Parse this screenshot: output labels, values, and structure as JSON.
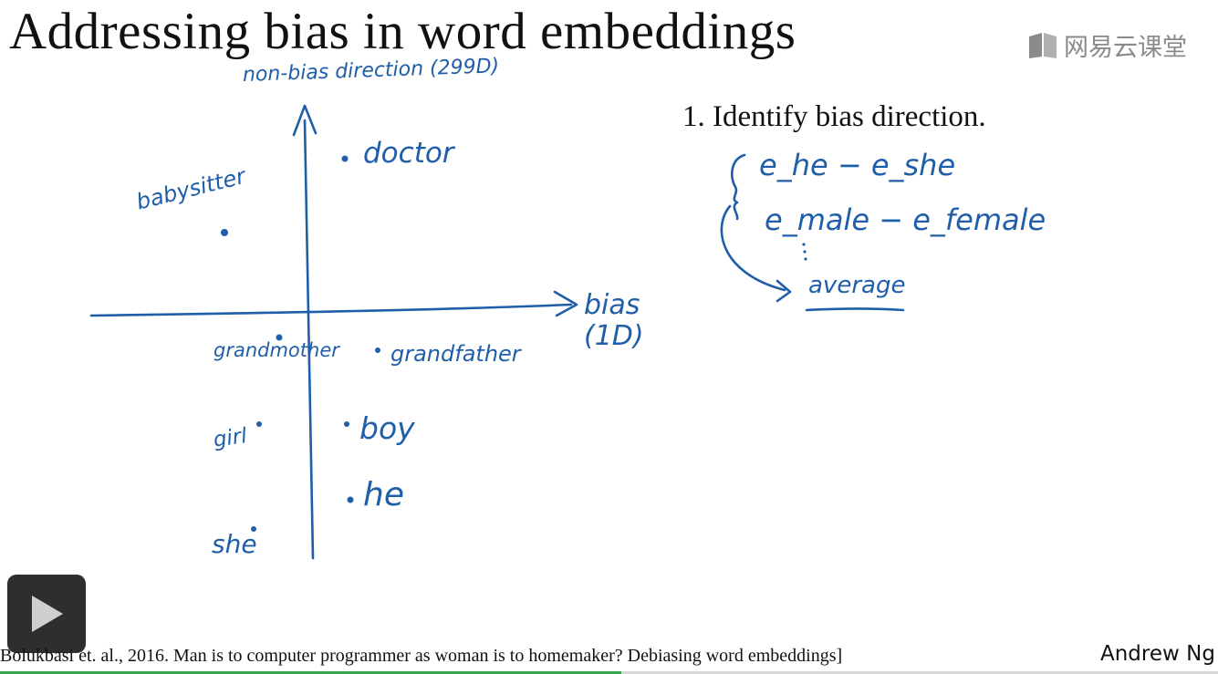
{
  "slide": {
    "title": "Addressing bias in word embeddings",
    "step": "1. Identify bias direction.",
    "citation": "Bolukbasi et. al., 2016. Man is to computer programmer as woman is to homemaker? Debiasing word embeddings]",
    "author": "Andrew Ng"
  },
  "brand": {
    "text": "网易云课堂",
    "icon": "book-icon"
  },
  "handwriting": {
    "y_axis_label": "non-bias direction (299D)",
    "x_axis_label_line1": "bias",
    "x_axis_label_line2": "(1D)",
    "words": {
      "doctor": "doctor",
      "babysitter": "babysitter",
      "grandmother": "grandmother",
      "grandfather": "grandfather",
      "girl": "girl",
      "boy": "boy",
      "he": "he",
      "she": "she"
    },
    "eq1": "e_he − e_she",
    "eq2": "e_male − e_female",
    "average": "average"
  },
  "player": {
    "play_icon": "play-icon",
    "progress": 0.51,
    "progress_color": "#3aa650"
  },
  "colors": {
    "ink": "#1f5ea8",
    "text": "#111111",
    "brand_gray": "#8a8a8a"
  }
}
